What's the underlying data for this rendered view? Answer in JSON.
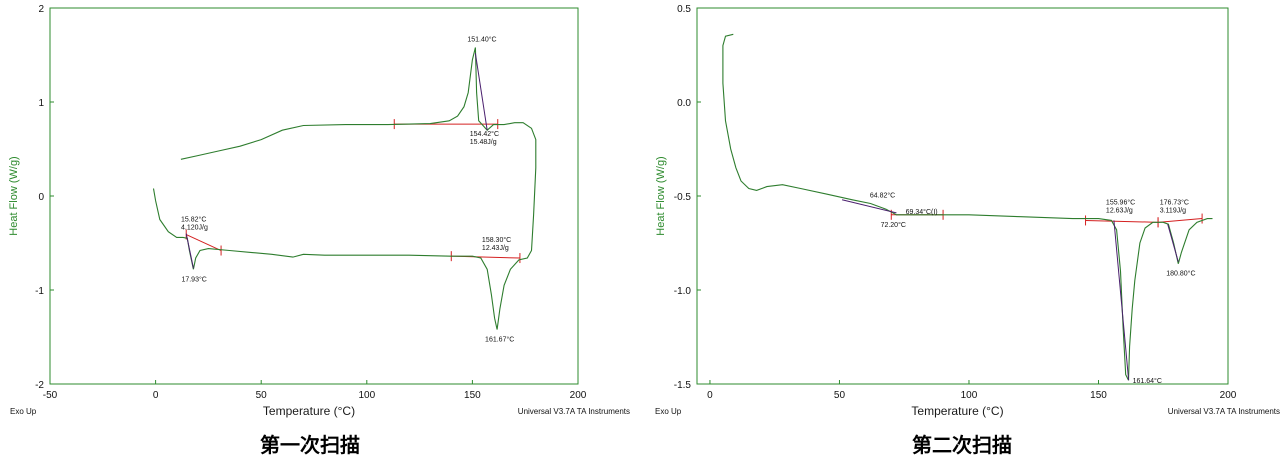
{
  "chart_data": [
    {
      "type": "line",
      "caption": "第一次扫描",
      "xlabel": "Temperature (°C)",
      "ylabel": "Heat Flow (W/g)",
      "xlim": [
        -50,
        200
      ],
      "ylim": [
        -2,
        2
      ],
      "xticks": [
        -50,
        0,
        50,
        100,
        150,
        200
      ],
      "yticks": [
        -2,
        -1,
        0,
        1,
        2
      ],
      "exo_label": "Exo Up",
      "instrument_label": "Universal V3.7A TA Instruments",
      "line_color": "#2e7d2e",
      "baseline_color": "#d42020",
      "series": [
        {
          "name": "heating",
          "points": [
            [
              -1,
              0.08
            ],
            [
              0,
              -0.05
            ],
            [
              2,
              -0.25
            ],
            [
              6,
              -0.38
            ],
            [
              10,
              -0.44
            ],
            [
              13,
              -0.44
            ],
            [
              15,
              -0.45
            ],
            [
              16,
              -0.58
            ],
            [
              17.9,
              -0.78
            ],
            [
              19,
              -0.66
            ],
            [
              21,
              -0.58
            ],
            [
              25,
              -0.56
            ],
            [
              35,
              -0.58
            ],
            [
              45,
              -0.6
            ],
            [
              55,
              -0.62
            ],
            [
              65,
              -0.65
            ],
            [
              70,
              -0.62
            ],
            [
              80,
              -0.63
            ],
            [
              100,
              -0.63
            ],
            [
              120,
              -0.63
            ],
            [
              140,
              -0.64
            ],
            [
              150,
              -0.64
            ],
            [
              154,
              -0.66
            ],
            [
              157,
              -0.78
            ],
            [
              159,
              -1.05
            ],
            [
              160.5,
              -1.3
            ],
            [
              161.7,
              -1.42
            ],
            [
              163,
              -1.2
            ],
            [
              165,
              -0.95
            ],
            [
              168,
              -0.78
            ],
            [
              172,
              -0.68
            ],
            [
              176,
              -0.66
            ],
            [
              178,
              -0.58
            ],
            [
              179,
              -0.2
            ],
            [
              180,
              0.3
            ],
            [
              180,
              0.6
            ],
            [
              178,
              0.72
            ],
            [
              174,
              0.78
            ],
            [
              170,
              0.78
            ],
            [
              165,
              0.76
            ],
            [
              160,
              0.76
            ],
            [
              157,
              0.7
            ],
            [
              155,
              0.75
            ],
            [
              153,
              0.8
            ],
            [
              152,
              1.1
            ],
            [
              151.4,
              1.58
            ],
            [
              150,
              1.45
            ],
            [
              148,
              1.1
            ],
            [
              146,
              0.95
            ],
            [
              143,
              0.85
            ],
            [
              139,
              0.8
            ],
            [
              130,
              0.77
            ],
            [
              110,
              0.76
            ],
            [
              90,
              0.76
            ],
            [
              70,
              0.75
            ],
            [
              60,
              0.7
            ],
            [
              50,
              0.6
            ],
            [
              40,
              0.53
            ],
            [
              30,
              0.48
            ],
            [
              20,
              0.43
            ],
            [
              12,
              0.39
            ]
          ]
        }
      ],
      "baselines": [
        [
          [
            14.5,
            -0.41
          ],
          [
            31,
            -0.58
          ]
        ],
        [
          [
            140,
            -0.64
          ],
          [
            172.5,
            -0.66
          ]
        ],
        [
          [
            113,
            0.765
          ],
          [
            162,
            0.765
          ]
        ]
      ],
      "tangents": [
        [
          [
            14.5,
            -0.4
          ],
          [
            17.93,
            -0.77
          ]
        ],
        [
          [
            151.4,
            1.52
          ],
          [
            157,
            0.7
          ]
        ]
      ],
      "annotations": [
        {
          "lines": [
            "15.82°C",
            "4.120J/g"
          ],
          "at": [
            15.82,
            -0.42
          ],
          "pos": "above"
        },
        {
          "lines": [
            "17.93°C"
          ],
          "at": [
            17.93,
            -0.78
          ],
          "pos": "below"
        },
        {
          "lines": [
            "158.30°C",
            "12.43J/g"
          ],
          "at": [
            158.3,
            -0.64
          ],
          "pos": "above"
        },
        {
          "lines": [
            "161.67°C"
          ],
          "at": [
            161.67,
            -1.42
          ],
          "pos": "below"
        },
        {
          "lines": [
            "151.40°C"
          ],
          "at": [
            151.4,
            1.58
          ],
          "pos": "above"
        },
        {
          "lines": [
            "154.42°C",
            "15.48J/g"
          ],
          "at": [
            154.42,
            0.765
          ],
          "pos": "below"
        }
      ]
    },
    {
      "type": "line",
      "caption": "第二次扫描",
      "xlabel": "Temperature (°C)",
      "ylabel": "Heat Flow (W/g)",
      "xlim": [
        -5,
        200
      ],
      "ylim": [
        -1.5,
        0.5
      ],
      "xticks": [
        0,
        50,
        100,
        150,
        200
      ],
      "yticks": [
        -1.5,
        -1.0,
        -0.5,
        0.0,
        0.5
      ],
      "ytick_labels": [
        "-1.5",
        "-1.0",
        "-0.5",
        "0.0",
        "0.5"
      ],
      "exo_label": "Exo Up",
      "instrument_label": "Universal V3.7A TA Instruments",
      "line_color": "#2e7d2e",
      "baseline_color": "#d42020",
      "series": [
        {
          "name": "heating",
          "points": [
            [
              9,
              0.36
            ],
            [
              6,
              0.35
            ],
            [
              5,
              0.3
            ],
            [
              5,
              0.1
            ],
            [
              6,
              -0.1
            ],
            [
              8,
              -0.25
            ],
            [
              10,
              -0.35
            ],
            [
              12,
              -0.42
            ],
            [
              15,
              -0.46
            ],
            [
              18,
              -0.47
            ],
            [
              22,
              -0.45
            ],
            [
              28,
              -0.44
            ],
            [
              35,
              -0.46
            ],
            [
              45,
              -0.49
            ],
            [
              55,
              -0.52
            ],
            [
              62,
              -0.54
            ],
            [
              68,
              -0.57
            ],
            [
              72,
              -0.6
            ],
            [
              80,
              -0.6
            ],
            [
              100,
              -0.6
            ],
            [
              120,
              -0.61
            ],
            [
              140,
              -0.62
            ],
            [
              150,
              -0.62
            ],
            [
              155,
              -0.63
            ],
            [
              157,
              -0.68
            ],
            [
              158.5,
              -0.9
            ],
            [
              159.5,
              -1.2
            ],
            [
              160.5,
              -1.45
            ],
            [
              161.6,
              -1.48
            ],
            [
              162,
              -1.3
            ],
            [
              163,
              -1.1
            ],
            [
              164,
              -0.95
            ],
            [
              166,
              -0.75
            ],
            [
              168,
              -0.67
            ],
            [
              171,
              -0.64
            ],
            [
              175,
              -0.64
            ],
            [
              177,
              -0.65
            ],
            [
              179,
              -0.75
            ],
            [
              180.8,
              -0.86
            ],
            [
              182,
              -0.8
            ],
            [
              185,
              -0.68
            ],
            [
              188,
              -0.64
            ],
            [
              192,
              -0.62
            ],
            [
              194,
              -0.62
            ]
          ]
        }
      ],
      "baselines": [
        [
          [
            145,
            -0.63
          ],
          [
            173,
            -0.64
          ]
        ],
        [
          [
            173,
            -0.64
          ],
          [
            190,
            -0.62
          ]
        ],
        [
          [
            70,
            -0.6
          ],
          [
            90,
            -0.6
          ]
        ]
      ],
      "tangents": [
        [
          [
            51,
            -0.52
          ],
          [
            72,
            -0.59
          ]
        ],
        [
          [
            155.96,
            -0.63
          ],
          [
            161.64,
            -1.48
          ]
        ],
        [
          [
            176.73,
            -0.65
          ],
          [
            180.8,
            -0.85
          ]
        ]
      ],
      "annotations": [
        {
          "lines": [
            "64.82°C"
          ],
          "at": [
            64.82,
            -0.54
          ],
          "pos": "above"
        },
        {
          "lines": [
            "72.20°C"
          ],
          "at": [
            70.5,
            -0.6
          ],
          "pos": "below"
        },
        {
          "lines": [
            "69.34°C(I)"
          ],
          "at": [
            74,
            -0.58
          ],
          "pos": "right"
        },
        {
          "lines": [
            "155.96°C",
            "12.63J/g"
          ],
          "at": [
            155.96,
            -0.62
          ],
          "pos": "above"
        },
        {
          "lines": [
            "161.64°C"
          ],
          "at": [
            161.64,
            -1.48
          ],
          "pos": "right"
        },
        {
          "lines": [
            "176.73°C",
            "3.119J/g"
          ],
          "at": [
            176.73,
            -0.62
          ],
          "pos": "above"
        },
        {
          "lines": [
            "180.80°C"
          ],
          "at": [
            180.8,
            -0.86
          ],
          "pos": "below"
        }
      ]
    }
  ]
}
